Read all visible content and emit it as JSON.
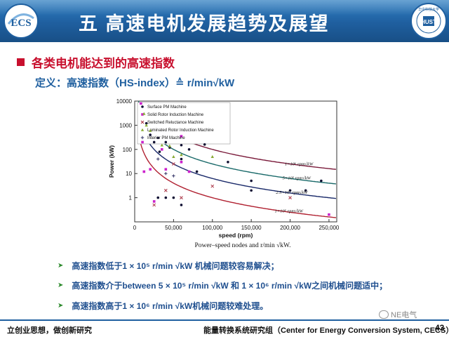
{
  "header": {
    "title": "五  高速电机发展趋势及展望",
    "logo_left_text": "ECS",
    "logo_right_text": "华中科技大学"
  },
  "section": {
    "heading": "各类电机能达到的高速指数",
    "definition": "定义：高速指数（HS-index）≙ r/min√kW"
  },
  "chart_data": {
    "type": "scatter",
    "xlabel": "speed (rpm)",
    "ylabel": "Power (kW)",
    "caption": "Power–speed nodes and r/min √kW.",
    "x_ticks": [
      "0",
      "50,000",
      "100,000",
      "150,000",
      "200,000",
      "250,000"
    ],
    "y_ticks": [
      "1",
      "10",
      "100",
      "1000",
      "10000"
    ],
    "xlim": [
      0,
      260000
    ],
    "ylim": [
      0.1,
      10000
    ],
    "y_scale": "log",
    "legend_position": "top-left",
    "curve_labels": [
      "1×10⁶ rpm√kW",
      "5×10⁵ rpm√kW",
      "2.5×10⁵ rpm√kW",
      "1×10⁵ rpm√kW"
    ],
    "curves": [
      1000000,
      500000,
      250000,
      100000
    ],
    "series": [
      {
        "name": "Surface PM Machine",
        "color": "#111133",
        "marker": "circle",
        "points": [
          [
            15000,
            1200
          ],
          [
            20000,
            400
          ],
          [
            25000,
            200
          ],
          [
            30000,
            300
          ],
          [
            32000,
            80
          ],
          [
            40000,
            200
          ],
          [
            45000,
            120
          ],
          [
            60000,
            150
          ],
          [
            60000,
            0.5
          ],
          [
            60000,
            40
          ],
          [
            70000,
            100
          ],
          [
            80000,
            12
          ],
          [
            90000,
            160
          ],
          [
            120000,
            30
          ],
          [
            150000,
            5
          ],
          [
            150000,
            2
          ],
          [
            200000,
            2
          ],
          [
            220000,
            2
          ],
          [
            240000,
            5
          ],
          [
            30000,
            1
          ],
          [
            40000,
            1
          ],
          [
            50000,
            1
          ]
        ]
      },
      {
        "name": "Solid Rotor Induction Machine",
        "color": "#cc22cc",
        "marker": "square",
        "points": [
          [
            8000,
            8000
          ],
          [
            10000,
            200
          ],
          [
            12000,
            12
          ],
          [
            20000,
            15
          ],
          [
            25000,
            0.7
          ],
          [
            35000,
            100
          ],
          [
            40000,
            15
          ],
          [
            60000,
            350
          ],
          [
            60000,
            30
          ],
          [
            70000,
            12
          ],
          [
            250000,
            0.2
          ]
        ]
      },
      {
        "name": "Switched Reluctance Machine",
        "color": "#aa3344",
        "marker": "x",
        "points": [
          [
            25000,
            0.5
          ],
          [
            40000,
            2
          ],
          [
            50000,
            25
          ],
          [
            60000,
            1
          ],
          [
            100000,
            3
          ],
          [
            200000,
            1
          ]
        ]
      },
      {
        "name": "Laminated Rotor Induction Machine",
        "color": "#88aa33",
        "marker": "triangle",
        "points": [
          [
            12000,
            3000
          ],
          [
            15000,
            1000
          ],
          [
            20000,
            600
          ],
          [
            35000,
            150
          ],
          [
            45000,
            140
          ],
          [
            50000,
            50
          ],
          [
            60000,
            60
          ],
          [
            100000,
            50
          ]
        ]
      },
      {
        "name": "Interior PM Machine",
        "color": "#333366",
        "marker": "plus",
        "points": [
          [
            30000,
            40
          ],
          [
            40000,
            10
          ],
          [
            50000,
            8
          ]
        ]
      }
    ]
  },
  "bullets": [
    "高速指数低于1 × 10⁵ r/min √kW 机械问题较容易解决；",
    "高速指数介于between 5 × 10⁵ r/min √kW 和 1 × 10⁶ r/min √kW之间机械问题适中；",
    "高速指数高于1 × 10⁶ r/min √kW机械问题较难处理。"
  ],
  "footer": {
    "left": "立创业思想，做创新研究",
    "right": "能量转换系统研究组（Center for Energy Conversion System, CECS）",
    "page": "43",
    "wechat": "NE电气"
  }
}
